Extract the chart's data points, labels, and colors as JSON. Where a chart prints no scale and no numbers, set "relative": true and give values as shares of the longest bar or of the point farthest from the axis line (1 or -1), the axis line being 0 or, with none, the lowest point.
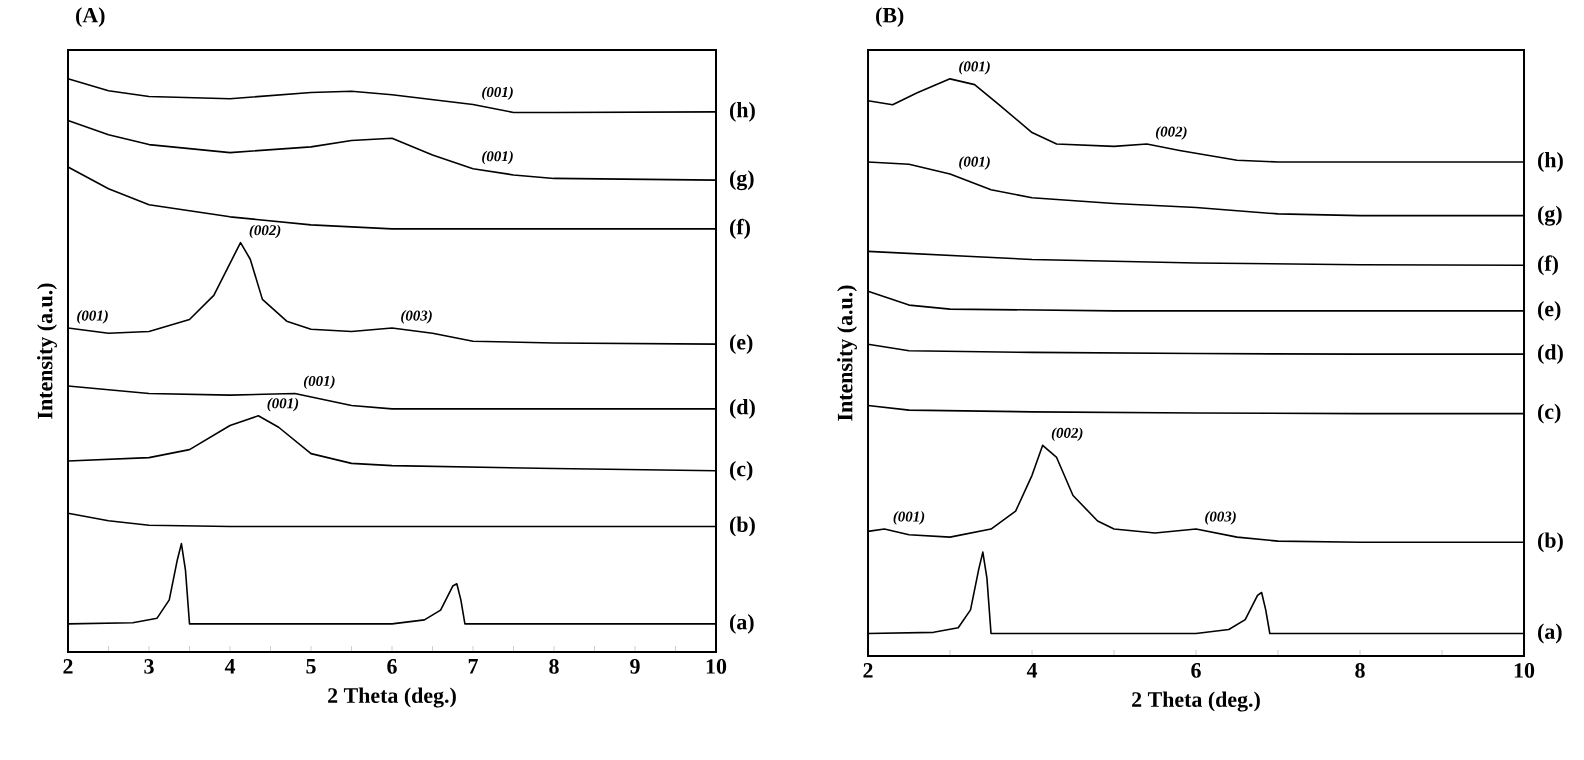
{
  "chart_data": [
    {
      "type": "line",
      "title": "(A)",
      "xlabel": "2 Theta (deg.)",
      "ylabel": "Intensity (a.u.)",
      "relative": true,
      "xlim": [
        2,
        10
      ],
      "xticks": [
        2,
        {
          "value": 2.5,
          "label": null
        },
        3,
        {
          "value": 3.5,
          "label": null
        },
        4,
        {
          "value": 4.5,
          "label": null
        },
        5,
        {
          "value": 5.5,
          "label": null
        },
        6,
        {
          "value": 6.5,
          "label": null
        },
        7,
        {
          "value": 7.5,
          "label": null
        },
        8,
        {
          "value": 8.5,
          "label": null
        },
        9,
        {
          "value": 9.5,
          "label": null
        },
        10
      ],
      "series": [
        {
          "name": "(a)",
          "color": "#000000",
          "x": [
            2,
            2.8,
            3.1,
            3.25,
            3.35,
            3.4,
            3.45,
            3.5,
            4,
            6,
            6.4,
            6.6,
            6.75,
            6.8,
            6.85,
            6.9,
            10
          ],
          "values": [
            0.049,
            0.051,
            0.059,
            0.091,
            0.161,
            0.189,
            0.143,
            0.049,
            0.049,
            0.049,
            0.056,
            0.073,
            0.115,
            0.119,
            0.091,
            0.049,
            0.049
          ]
        },
        {
          "name": "(b)",
          "color": "#000000",
          "x": [
            2,
            2.5,
            3,
            4,
            6,
            8,
            10
          ],
          "values": [
            0.242,
            0.229,
            0.221,
            0.219,
            0.219,
            0.219,
            0.219
          ]
        },
        {
          "name": "(c)",
          "color": "#000000",
          "x": [
            2,
            3,
            3.5,
            4,
            4.35,
            4.6,
            5,
            5.5,
            6,
            8,
            10
          ],
          "values": [
            0.333,
            0.339,
            0.353,
            0.395,
            0.412,
            0.392,
            0.346,
            0.329,
            0.325,
            0.32,
            0.316
          ]
        },
        {
          "name": "(d)",
          "color": "#000000",
          "x": [
            2,
            3,
            4,
            4.8,
            5.5,
            6,
            8,
            10
          ],
          "values": [
            0.464,
            0.451,
            0.448,
            0.451,
            0.43,
            0.424,
            0.424,
            0.424
          ]
        },
        {
          "name": "(e)",
          "color": "#000000",
          "x": [
            2,
            2.5,
            3,
            3.5,
            3.8,
            4.0,
            4.13,
            4.25,
            4.4,
            4.7,
            5,
            5.5,
            6,
            6.5,
            7,
            8,
            10
          ],
          "values": [
            0.565,
            0.556,
            0.559,
            0.58,
            0.622,
            0.678,
            0.714,
            0.685,
            0.615,
            0.577,
            0.563,
            0.559,
            0.565,
            0.556,
            0.542,
            0.539,
            0.537
          ]
        },
        {
          "name": "(f)",
          "color": "#000000",
          "x": [
            2,
            2.5,
            3,
            4,
            5,
            6,
            8,
            10
          ],
          "values": [
            0.846,
            0.808,
            0.78,
            0.759,
            0.745,
            0.738,
            0.738,
            0.738
          ]
        },
        {
          "name": "(g)",
          "color": "#000000",
          "x": [
            2,
            2.5,
            3,
            4,
            5,
            5.5,
            6,
            6.5,
            7,
            7.5,
            8,
            10
          ],
          "values": [
            0.927,
            0.902,
            0.885,
            0.871,
            0.881,
            0.892,
            0.896,
            0.867,
            0.843,
            0.832,
            0.826,
            0.823
          ]
        },
        {
          "name": "(h)",
          "color": "#000000",
          "x": [
            2,
            2.5,
            3,
            4,
            5,
            5.5,
            6,
            7,
            7.5,
            8,
            10
          ],
          "values": [
            1.0,
            0.979,
            0.969,
            0.965,
            0.976,
            0.978,
            0.972,
            0.955,
            0.941,
            0.941,
            0.942
          ]
        }
      ],
      "annotations": [
        {
          "text": "(001)",
          "x": 7,
          "y": 0.955
        },
        {
          "text": "(001)",
          "x": 7,
          "y": 0.843
        },
        {
          "text": "(001)",
          "x": 2,
          "y": 0.565
        },
        {
          "text": "(002)",
          "x": 4.13,
          "y": 0.714
        },
        {
          "text": "(003)",
          "x": 6,
          "y": 0.565
        },
        {
          "text": "(001)",
          "x": 4.8,
          "y": 0.451
        },
        {
          "text": "(001)",
          "x": 4.35,
          "y": 0.412
        }
      ]
    },
    {
      "type": "line",
      "title": "(B)",
      "xlabel": "2 Theta (deg.)",
      "ylabel": "Intensity (a.u.)",
      "relative": true,
      "xlim": [
        2,
        10
      ],
      "xticks": [
        2,
        {
          "value": 3,
          "label": null
        },
        4,
        {
          "value": 5,
          "label": null
        },
        6,
        {
          "value": 7,
          "label": null
        },
        8,
        {
          "value": 9,
          "label": null
        },
        10
      ],
      "series": [
        {
          "name": "(a)",
          "color": "#000000",
          "x": [
            2,
            2.8,
            3.1,
            3.25,
            3.35,
            3.4,
            3.45,
            3.5,
            4,
            6,
            6.4,
            6.6,
            6.75,
            6.8,
            6.85,
            6.9,
            10
          ],
          "values": [
            0.039,
            0.041,
            0.049,
            0.08,
            0.15,
            0.18,
            0.135,
            0.039,
            0.039,
            0.039,
            0.046,
            0.063,
            0.105,
            0.11,
            0.08,
            0.039,
            0.039
          ]
        },
        {
          "name": "(b)",
          "color": "#000000",
          "x": [
            2,
            2.2,
            2.5,
            3,
            3.5,
            3.8,
            4.0,
            4.13,
            4.3,
            4.5,
            4.8,
            5,
            5.5,
            6,
            6.5,
            7,
            8,
            10
          ],
          "values": [
            0.216,
            0.22,
            0.21,
            0.206,
            0.22,
            0.251,
            0.313,
            0.365,
            0.344,
            0.278,
            0.234,
            0.22,
            0.213,
            0.22,
            0.206,
            0.199,
            0.197,
            0.197
          ]
        },
        {
          "name": "(c)",
          "color": "#000000",
          "x": [
            2,
            2.5,
            4,
            6,
            8,
            10
          ],
          "values": [
            0.434,
            0.426,
            0.423,
            0.421,
            0.42,
            0.42
          ]
        },
        {
          "name": "(d)",
          "color": "#000000",
          "x": [
            2,
            2.5,
            4,
            6,
            8,
            10
          ],
          "values": [
            0.54,
            0.529,
            0.526,
            0.524,
            0.523,
            0.523
          ]
        },
        {
          "name": "(e)",
          "color": "#000000",
          "x": [
            2,
            2.5,
            3,
            5,
            8,
            10
          ],
          "values": [
            0.632,
            0.608,
            0.601,
            0.598,
            0.598,
            0.598
          ]
        },
        {
          "name": "(f)",
          "color": "#000000",
          "x": [
            2,
            4,
            6,
            8,
            10
          ],
          "values": [
            0.701,
            0.687,
            0.681,
            0.678,
            0.677
          ]
        },
        {
          "name": "(g)",
          "color": "#000000",
          "x": [
            2,
            2.5,
            3,
            3.5,
            4,
            5,
            6,
            7,
            8,
            10
          ],
          "values": [
            0.856,
            0.852,
            0.835,
            0.808,
            0.794,
            0.784,
            0.777,
            0.766,
            0.763,
            0.763
          ]
        },
        {
          "name": "(h)",
          "color": "#000000",
          "x": [
            2,
            2.3,
            2.6,
            3,
            3.3,
            3.6,
            4,
            4.3,
            5,
            5.4,
            5.8,
            6.5,
            7,
            8,
            10
          ],
          "values": [
            0.962,
            0.955,
            0.976,
            1.0,
            0.99,
            0.955,
            0.907,
            0.887,
            0.883,
            0.887,
            0.876,
            0.859,
            0.856,
            0.856,
            0.856
          ]
        }
      ],
      "annotations": [
        {
          "text": "(001)",
          "x": 3,
          "y": 1.0
        },
        {
          "text": "(002)",
          "x": 5.4,
          "y": 0.887
        },
        {
          "text": "(001)",
          "x": 3,
          "y": 0.835
        },
        {
          "text": "(002)",
          "x": 4.13,
          "y": 0.365
        },
        {
          "text": "(001)",
          "x": 2.2,
          "y": 0.22
        },
        {
          "text": "(003)",
          "x": 6,
          "y": 0.22
        }
      ]
    }
  ]
}
